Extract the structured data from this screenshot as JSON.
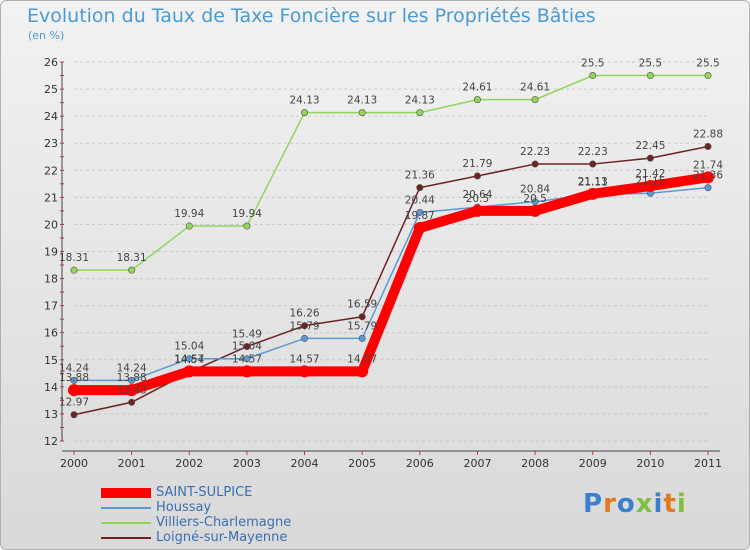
{
  "chart_data": {
    "type": "line",
    "title": "Evolution du Taux de Taxe Foncière sur les Propriétés Bâties",
    "unit_label": "(en %)",
    "xlabel": "",
    "ylabel": "",
    "categories": [
      "2000",
      "2001",
      "2002",
      "2003",
      "2004",
      "2005",
      "2006",
      "2007",
      "2008",
      "2009",
      "2010",
      "2011"
    ],
    "ylim": [
      12,
      26
    ],
    "yticks": [
      12,
      13,
      14,
      15,
      16,
      17,
      18,
      19,
      20,
      21,
      22,
      23,
      24,
      25,
      26
    ],
    "grid": "horizontal dashed",
    "series": [
      {
        "name": "Villiers-Charlemagne",
        "color": "#8fd65a",
        "values": [
          18.31,
          18.31,
          19.94,
          19.94,
          24.13,
          24.13,
          24.13,
          24.61,
          24.61,
          25.5,
          25.5,
          25.5
        ],
        "labels": [
          "18.31",
          "18.31",
          "19.94",
          "19.94",
          "24.13",
          "24.13",
          "24.13",
          "24.61",
          "24.61",
          "25.5",
          "25.5",
          "25.5"
        ]
      },
      {
        "name": "Loigné-sur-Mayenne",
        "color": "#6b2424",
        "values": [
          12.97,
          13.43,
          14.54,
          15.49,
          16.26,
          16.59,
          21.36,
          21.79,
          22.23,
          22.23,
          22.45,
          22.88
        ],
        "labels": [
          "12.97",
          "13.43",
          "14.54",
          "15.49",
          "16.26",
          "16.59",
          "21.36",
          "21.79",
          "22.23",
          "22.23",
          "22.45",
          "22.88"
        ]
      },
      {
        "name": "Houssay",
        "color": "#5a9ad4",
        "values": [
          14.24,
          14.24,
          15.04,
          15.04,
          15.79,
          15.79,
          20.44,
          20.64,
          20.84,
          21.11,
          21.15,
          21.36
        ],
        "labels": [
          "14.24",
          "14.24",
          "15.04",
          "15.04",
          "15.79",
          "15.79",
          "20.44",
          "20.64",
          "20.84",
          "21.11",
          "21.15",
          "21.36"
        ]
      },
      {
        "name": "SAINT-SULPICE",
        "color": "#ff0000",
        "values": [
          13.88,
          13.88,
          14.57,
          14.57,
          14.57,
          14.57,
          19.87,
          20.5,
          20.5,
          21.13,
          21.42,
          21.74
        ],
        "labels": [
          "13.88",
          "13.88",
          "14.57",
          "14.57",
          "14.57",
          "14.57",
          "19.87",
          "20.5",
          "20.5",
          "21.13",
          "21.42",
          "21.74"
        ]
      }
    ],
    "legend": [
      "SAINT-SULPICE",
      "Houssay",
      "Villiers-Charlemagne",
      "Loigné-sur-Mayenne"
    ]
  },
  "logo_text": "Proxiti"
}
